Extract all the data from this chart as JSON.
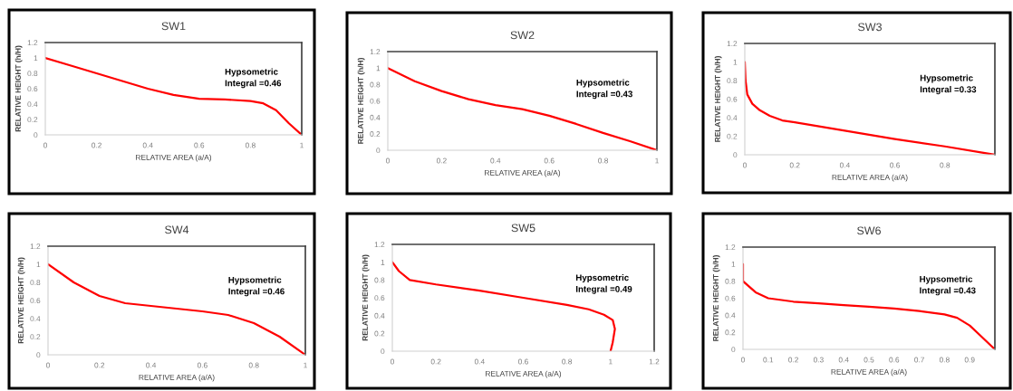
{
  "chart_data": [
    {
      "type": "line",
      "title": "SW1",
      "xlabel": "RELATIVE AREA (a/A)",
      "ylabel": "RELATIVE HEIGHT (h/H)",
      "annotations": [
        "Hypsometric\nIntegral =0.46"
      ],
      "xlim": [
        0,
        1
      ],
      "ylim": [
        0,
        1.2
      ],
      "xticks": [
        0,
        0.2,
        0.4,
        0.6,
        0.8,
        1
      ],
      "yticks": [
        0,
        0.2,
        0.4,
        0.6,
        0.8,
        1,
        1.2
      ],
      "grid": false,
      "series": [
        {
          "color": "#ff0000",
          "x": [
            0,
            0.1,
            0.2,
            0.3,
            0.4,
            0.5,
            0.6,
            0.7,
            0.8,
            0.85,
            0.9,
            0.95,
            1
          ],
          "values": [
            1,
            0.9,
            0.8,
            0.7,
            0.6,
            0.52,
            0.47,
            0.46,
            0.44,
            0.41,
            0.32,
            0.15,
            0
          ]
        }
      ]
    },
    {
      "type": "line",
      "title": "SW2",
      "xlabel": "RELATIVE AREA (a/A)",
      "ylabel": "RELATIVE HEIGHT (h/H)",
      "annotations": [
        "Hypsometric\nIntegral =0.43"
      ],
      "xlim": [
        0,
        1
      ],
      "ylim": [
        0,
        1.2
      ],
      "xticks": [
        0,
        0.2,
        0.4,
        0.6,
        0.8,
        1
      ],
      "yticks": [
        0,
        0.2,
        0.4,
        0.6,
        0.8,
        1,
        1.2
      ],
      "grid": false,
      "series": [
        {
          "color": "#ff0000",
          "x": [
            0,
            0.1,
            0.2,
            0.3,
            0.4,
            0.5,
            0.6,
            0.7,
            0.8,
            0.9,
            1
          ],
          "values": [
            1,
            0.84,
            0.72,
            0.62,
            0.55,
            0.5,
            0.42,
            0.32,
            0.21,
            0.11,
            0
          ]
        }
      ]
    },
    {
      "type": "line",
      "title": "SW3",
      "xlabel": "RELATIVE AREA (a/A)",
      "ylabel": "RELATIVE HEIGHT (h/H)",
      "annotations": [
        "Hypsometric\nIntegral =0.33"
      ],
      "xlim": [
        0,
        1
      ],
      "ylim": [
        0,
        1.2
      ],
      "xticks": [
        0,
        0.2,
        0.4,
        0.6,
        0.8
      ],
      "yticks": [
        0,
        0.2,
        0.4,
        0.6,
        0.8,
        1,
        1.2
      ],
      "grid": false,
      "series": [
        {
          "color": "#ff0000",
          "x": [
            0,
            0.003,
            0.01,
            0.03,
            0.06,
            0.1,
            0.15,
            0.2,
            0.4,
            0.6,
            0.8,
            1
          ],
          "values": [
            1,
            0.8,
            0.65,
            0.55,
            0.48,
            0.42,
            0.37,
            0.35,
            0.26,
            0.17,
            0.09,
            0
          ]
        }
      ]
    },
    {
      "type": "line",
      "title": "SW4",
      "xlabel": "RELATIVE AREA (a/A)",
      "ylabel": "RELATIVE HEIGHT (h/H)",
      "annotations": [
        "Hypsometric\nIntegral =0.46"
      ],
      "xlim": [
        0,
        1
      ],
      "ylim": [
        0,
        1.2
      ],
      "xticks": [
        0,
        0.2,
        0.4,
        0.6,
        0.8,
        1
      ],
      "yticks": [
        0,
        0.2,
        0.4,
        0.6,
        0.8,
        1,
        1.2
      ],
      "grid": false,
      "series": [
        {
          "color": "#ff0000",
          "x": [
            0,
            0.1,
            0.2,
            0.3,
            0.4,
            0.5,
            0.6,
            0.7,
            0.8,
            0.9,
            1
          ],
          "values": [
            1,
            0.8,
            0.65,
            0.57,
            0.54,
            0.51,
            0.48,
            0.44,
            0.35,
            0.2,
            0
          ]
        }
      ]
    },
    {
      "type": "line",
      "title": "SW5",
      "xlabel": "RELATIVE AREA (a/A)",
      "ylabel": "RELATIVE HEIGHT (h/H)",
      "annotations": [
        "Hypsometric\nIntegral =0.49"
      ],
      "xlim": [
        0,
        1.2
      ],
      "ylim": [
        0,
        1.2
      ],
      "xticks": [
        0,
        0.2,
        0.4,
        0.6,
        0.8,
        1,
        1.2
      ],
      "yticks": [
        0,
        0.2,
        0.4,
        0.6,
        0.8,
        1,
        1.2
      ],
      "grid": false,
      "series": [
        {
          "color": "#ff0000",
          "x": [
            0,
            0.03,
            0.08,
            0.2,
            0.4,
            0.6,
            0.8,
            0.9,
            0.97,
            1.01,
            1.02,
            1.01,
            1
          ],
          "values": [
            1,
            0.9,
            0.8,
            0.75,
            0.68,
            0.6,
            0.52,
            0.47,
            0.41,
            0.35,
            0.25,
            0.1,
            0
          ]
        }
      ]
    },
    {
      "type": "line",
      "title": "SW6",
      "xlabel": "RELATIVE AREA (a/A)",
      "ylabel": "RELATIVE HEIGHT (h/H)",
      "annotations": [
        "Hypsometric\nIntegral =0.43"
      ],
      "xlim": [
        0,
        1
      ],
      "ylim": [
        0,
        1.2
      ],
      "xticks": [
        0,
        0.1,
        0.2,
        0.3,
        0.4,
        0.5,
        0.6,
        0.7,
        0.8,
        0.9
      ],
      "yticks": [
        0,
        0.2,
        0.4,
        0.6,
        0.8,
        1,
        1.2
      ],
      "grid": false,
      "series": [
        {
          "color": "#ff0000",
          "x": [
            0,
            0,
            0.05,
            0.1,
            0.2,
            0.3,
            0.4,
            0.5,
            0.6,
            0.7,
            0.8,
            0.85,
            0.9,
            0.95,
            1
          ],
          "values": [
            1,
            0.8,
            0.67,
            0.6,
            0.56,
            0.54,
            0.52,
            0.5,
            0.48,
            0.45,
            0.41,
            0.37,
            0.28,
            0.14,
            0
          ]
        }
      ]
    }
  ]
}
